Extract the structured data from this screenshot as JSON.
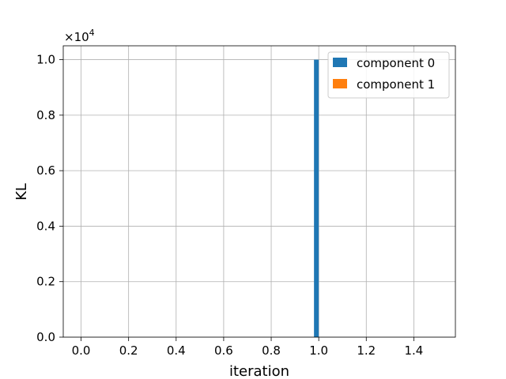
{
  "chart_data": {
    "type": "bar",
    "xlabel": "iteration",
    "ylabel": "KL",
    "y_multiplier_text": "×10",
    "y_multiplier_exponent": "4",
    "xlim": [
      -0.075,
      1.575
    ],
    "ylim": [
      0,
      10500
    ],
    "x_ticks": [
      0.0,
      0.2,
      0.4,
      0.6,
      0.8,
      1.0,
      1.2,
      1.4
    ],
    "x_tick_labels": [
      "0.0",
      "0.2",
      "0.4",
      "0.6",
      "0.8",
      "1.0",
      "1.2",
      "1.4"
    ],
    "y_ticks": [
      0,
      2000,
      4000,
      6000,
      8000,
      10000
    ],
    "y_tick_labels": [
      "0.0",
      "0.2",
      "0.4",
      "0.6",
      "0.8",
      "1.0"
    ],
    "grid": true,
    "legend_position": "top-right",
    "bar_width": 0.02,
    "series": [
      {
        "name": "component 0",
        "color": "#1f77b4",
        "x": [
          0,
          1
        ],
        "values": [
          0,
          10000
        ]
      },
      {
        "name": "component 1",
        "color": "#ff7f0e",
        "x": [
          0,
          1
        ],
        "values": [
          0,
          0
        ]
      }
    ]
  }
}
